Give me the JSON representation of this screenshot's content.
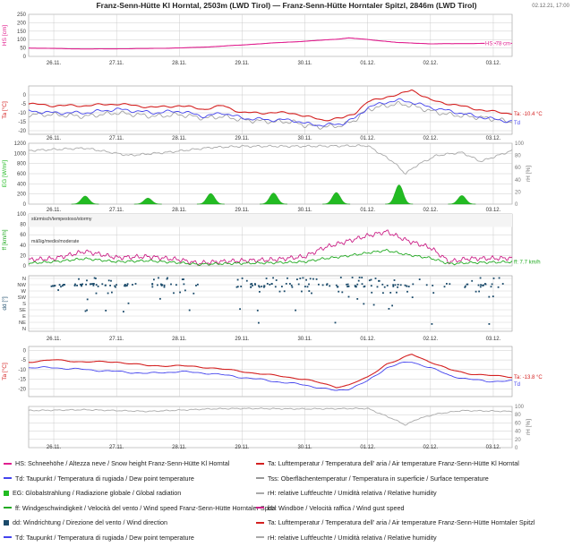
{
  "header": {
    "title": "Franz-Senn-Hütte Kl Horntal, 2503m (LWD Tirol) — Franz-Senn-Hütte Horntaler Spitzl, 2846m (LWD Tirol)",
    "timestamp": "02.12.21, 17:00"
  },
  "colors": {
    "hs": "#e0208f",
    "ta": "#d42020",
    "td": "#4444ee",
    "tss": "#999999",
    "glob": "#22bb22",
    "rh": "#aaaaaa",
    "ff": "#22aa22",
    "bb": "#cc2288",
    "dd": "#1a4a6a",
    "grid": "#cccccc"
  },
  "chart_data": [
    {
      "type": "line",
      "ylabel": "HS [cm]",
      "ylim": [
        0,
        250
      ],
      "yticks": [
        0,
        50,
        100,
        150,
        200,
        250
      ],
      "x": [
        25.6,
        26.0,
        26.5,
        27.0,
        27.5,
        28.0,
        28.5,
        29.0,
        29.5,
        30.0,
        30.5,
        30.7,
        31.0,
        31.5,
        32.0,
        32.5,
        33.0,
        33.3
      ],
      "series": [
        {
          "name": "HS",
          "values": [
            50,
            47,
            44,
            45,
            47,
            50,
            57,
            68,
            80,
            90,
            102,
            110,
            100,
            82,
            75,
            76,
            78,
            78
          ]
        }
      ],
      "end_label": "HS: 78 cm"
    },
    {
      "type": "line",
      "ylabel": "Ta [°C]",
      "ylim": [
        -22,
        5
      ],
      "yticks": [
        0,
        -5,
        -10,
        -15,
        -20
      ],
      "x": [
        25.6,
        26.0,
        26.5,
        27.0,
        27.3,
        27.6,
        28.0,
        28.4,
        28.7,
        29.0,
        29.5,
        29.8,
        30.0,
        30.3,
        30.6,
        30.8,
        31.0,
        31.3,
        31.5,
        31.7,
        32.0,
        32.3,
        32.6,
        32.9,
        33.3
      ],
      "series": [
        {
          "name": "Ta",
          "values": [
            -5,
            -6,
            -6,
            -5,
            -6,
            -7,
            -6,
            -8,
            -6,
            -10,
            -10,
            -10,
            -12,
            -14,
            -13,
            -10,
            -4,
            -1,
            0,
            3,
            -3,
            -5,
            -7,
            -9,
            -10.4
          ]
        },
        {
          "name": "Td",
          "values": [
            -9,
            -10,
            -10,
            -8,
            -9,
            -10,
            -9,
            -12,
            -10,
            -13,
            -14,
            -14,
            -16,
            -17,
            -16,
            -13,
            -7,
            -4,
            -3,
            -4,
            -7,
            -9,
            -11,
            -13,
            -15
          ]
        },
        {
          "name": "Tss",
          "values": [
            -11,
            -11,
            -12,
            -10,
            -11,
            -12,
            -11,
            -13,
            -12,
            -14,
            -15,
            -15,
            -17,
            -18,
            -17,
            -14,
            -8,
            -6,
            -5,
            -6,
            -9,
            -11,
            -12,
            -13,
            -15
          ]
        }
      ],
      "end_labels": [
        "Ta: -10.4 °C",
        "Td"
      ]
    },
    {
      "type": "area",
      "ylabel": "EG [W/m²]",
      "ylabel_right": "rH [%]",
      "ylim": [
        0,
        1200
      ],
      "yticks": [
        0,
        200,
        400,
        600,
        800,
        1000,
        1200
      ],
      "ylim_right": [
        0,
        100
      ],
      "yticks_right": [
        0,
        20,
        40,
        60,
        80,
        100
      ],
      "peaks": [
        {
          "day": 26.5,
          "value": 160
        },
        {
          "day": 27.5,
          "value": 120
        },
        {
          "day": 28.5,
          "value": 210
        },
        {
          "day": 29.5,
          "value": 220
        },
        {
          "day": 30.5,
          "value": 230
        },
        {
          "day": 31.5,
          "value": 380
        },
        {
          "day": 32.5,
          "value": 170
        }
      ],
      "rh": {
        "x": [
          25.6,
          26.5,
          27.2,
          27.8,
          28.5,
          29.0,
          30.0,
          31.0,
          31.4,
          31.6,
          31.8,
          32.1,
          32.5,
          32.8,
          33.3
        ],
        "values": [
          88,
          92,
          80,
          85,
          93,
          95,
          95,
          96,
          70,
          50,
          65,
          80,
          85,
          70,
          88
        ]
      }
    },
    {
      "type": "line",
      "ylabel": "ff [km/h]",
      "ylim": [
        0,
        100
      ],
      "yticks": [
        0,
        20,
        40,
        60,
        80,
        100
      ],
      "band_labels": [
        "stürmisch/tempestoso/stormy",
        "mäßig/medio/moderate"
      ],
      "x": [
        25.6,
        26.0,
        26.5,
        27.0,
        27.5,
        28.0,
        28.3,
        28.6,
        29.0,
        29.5,
        30.0,
        30.3,
        30.6,
        31.0,
        31.3,
        31.6,
        32.0,
        32.3,
        32.6,
        33.3
      ],
      "series": [
        {
          "name": "ff",
          "values": [
            5,
            8,
            14,
            8,
            10,
            6,
            3,
            4,
            5,
            6,
            8,
            14,
            18,
            25,
            30,
            22,
            15,
            4,
            6,
            7.7
          ]
        },
        {
          "name": "bb",
          "values": [
            12,
            14,
            28,
            16,
            18,
            12,
            5,
            8,
            10,
            12,
            18,
            35,
            45,
            58,
            66,
            50,
            35,
            8,
            14,
            15
          ]
        }
      ],
      "end_label": "ff: 7.7 km/h"
    },
    {
      "type": "scatter",
      "ylabel": "dd [°]",
      "categories": [
        "N",
        "NW",
        "W",
        "SW",
        "S",
        "SE",
        "E",
        "NE",
        "N"
      ]
    },
    {
      "type": "line",
      "ylabel": "Ta [°C]",
      "ylim": [
        -24,
        2
      ],
      "yticks": [
        0,
        -5,
        -10,
        -15,
        -20
      ],
      "x": [
        25.6,
        26.0,
        26.5,
        27.0,
        27.5,
        28.0,
        28.5,
        29.0,
        29.5,
        30.0,
        30.5,
        30.7,
        31.0,
        31.3,
        31.5,
        31.7,
        32.0,
        32.3,
        32.6,
        32.9,
        33.3
      ],
      "series": [
        {
          "name": "Ta",
          "values": [
            -6,
            -5,
            -6,
            -6,
            -8,
            -8,
            -9,
            -11,
            -13,
            -15,
            -19,
            -18,
            -14,
            -7,
            -5,
            -2,
            -6,
            -10,
            -12,
            -13,
            -13.8
          ]
        },
        {
          "name": "Td",
          "values": [
            -9,
            -9,
            -10,
            -11,
            -12,
            -11,
            -12,
            -14,
            -16,
            -18,
            -21,
            -20,
            -16,
            -9,
            -7,
            -6,
            -9,
            -13,
            -15,
            -16,
            -16
          ]
        }
      ],
      "end_labels": [
        "Ta: -13.8 °C",
        "Td"
      ]
    },
    {
      "type": "line",
      "ylabel_right": "rH [%]",
      "ylim": [
        0,
        100
      ],
      "yticks": [
        0,
        20,
        40,
        60,
        80,
        100
      ],
      "x": [
        25.6,
        26.5,
        27.5,
        28.5,
        29.0,
        30.0,
        31.0,
        31.4,
        31.6,
        31.8,
        32.1,
        32.5,
        33.3
      ],
      "series": [
        {
          "name": "rH",
          "values": [
            90,
            92,
            88,
            94,
            95,
            94,
            95,
            70,
            55,
            70,
            82,
            90,
            88
          ]
        }
      ]
    }
  ],
  "xaxis": {
    "ticks": [
      {
        "day": 26,
        "label": "26.11."
      },
      {
        "day": 27,
        "label": "27.11."
      },
      {
        "day": 28,
        "label": "28.11."
      },
      {
        "day": 29,
        "label": "29.11."
      },
      {
        "day": 30,
        "label": "30.11."
      },
      {
        "day": 31,
        "label": "01.12."
      },
      {
        "day": 32,
        "label": "02.12."
      },
      {
        "day": 33,
        "label": "03.12."
      }
    ]
  },
  "legend": [
    {
      "key": "hs",
      "kind": "line",
      "text": "HS: Schneehöhe / Altezza neve / Snow height  Franz-Senn-Hütte Kl Horntal"
    },
    {
      "key": "ta",
      "kind": "line",
      "text": "Ta: Lufttemperatur / Temperatura dell' aria / Air temperature  Franz-Senn-Hütte Kl Horntal"
    },
    {
      "key": "td",
      "kind": "line",
      "text": "Td: Taupunkt / Temperatura di rugiada / Dew point temperature"
    },
    {
      "key": "tss",
      "kind": "line",
      "text": "Tss: Oberflächentemperatur / Temperatura in superficie / Surface temperature"
    },
    {
      "key": "glob",
      "kind": "box",
      "text": "EG: Globalstrahlung / Radiazione globale / Global radiation"
    },
    {
      "key": "rh",
      "kind": "line",
      "text": "rH: relative Luftfeuchte / Umidità relativa / Relative humidity"
    },
    {
      "key": "ff",
      "kind": "line",
      "text": "ff: Windgeschwindigkeit / Velocità del vento / Wind speed  Franz-Senn-Hütte Horntaler Spitzl"
    },
    {
      "key": "bb",
      "kind": "line",
      "text": "bb: Windböe / Velocità raffica / Wind gust speed"
    },
    {
      "key": "dd",
      "kind": "box",
      "text": "dd: Windrichtung / Direzione del vento / Wind direction"
    },
    {
      "key": "ta",
      "kind": "line",
      "text": "Ta: Lufttemperatur / Temperatura dell' aria / Air temperature  Franz-Senn-Hütte Horntaler Spitzl"
    },
    {
      "key": "td",
      "kind": "line",
      "text": "Td: Taupunkt / Temperatura di rugiada / Dew point temperature"
    },
    {
      "key": "rh",
      "kind": "line",
      "text": "rH: relative Luftfeuchte / Umidità relativa / Relative humidity"
    }
  ]
}
